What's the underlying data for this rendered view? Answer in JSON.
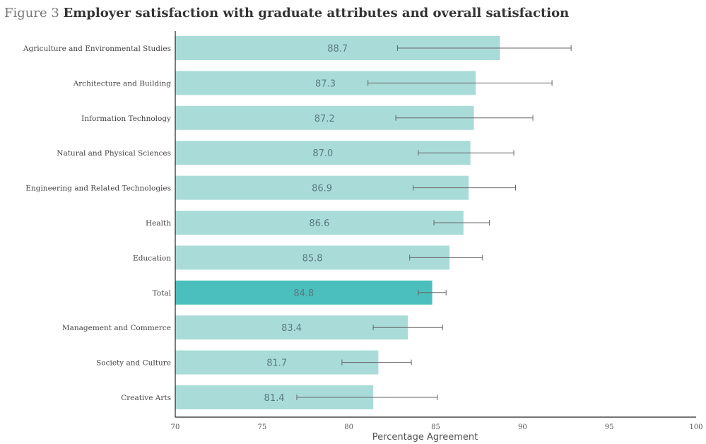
{
  "chart_data": {
    "type": "bar",
    "orientation": "horizontal",
    "title_prefix": "Figure 3",
    "title": "Employer satisfaction with graduate attributes and overall satisfaction",
    "xlabel": "Percentage Agreement",
    "ylabel": "",
    "xlim": [
      70,
      100
    ],
    "xticks": [
      70,
      75,
      80,
      85,
      90,
      95,
      100
    ],
    "categories": [
      "Agriculture and Environmental Studies",
      "Architecture and Building",
      "Information Technology",
      "Natural and Physical Sciences",
      "Engineering and Related Technologies",
      "Health",
      "Education",
      "Total",
      "Management and Commerce",
      "Society and Culture",
      "Creative Arts"
    ],
    "values": [
      88.7,
      87.3,
      87.2,
      87.0,
      86.9,
      86.6,
      85.8,
      84.8,
      83.4,
      81.7,
      81.4
    ],
    "value_labels": [
      "88.7",
      "87.3",
      "87.2",
      "87.0",
      "86.9",
      "86.6",
      "85.8",
      "84.8",
      "83.4",
      "81.7",
      "81.4"
    ],
    "error_low": [
      82.8,
      81.1,
      82.7,
      84.0,
      83.7,
      84.9,
      83.5,
      84.0,
      81.4,
      79.6,
      77.0
    ],
    "error_high": [
      92.8,
      91.7,
      90.6,
      89.5,
      89.6,
      88.1,
      87.7,
      85.6,
      85.4,
      83.6,
      85.1
    ],
    "highlight": "Total",
    "colors": {
      "bar": "#a9dcd9",
      "highlight": "#4bbfbd",
      "error": "#666666",
      "axis": "#222222"
    },
    "grid": false
  }
}
